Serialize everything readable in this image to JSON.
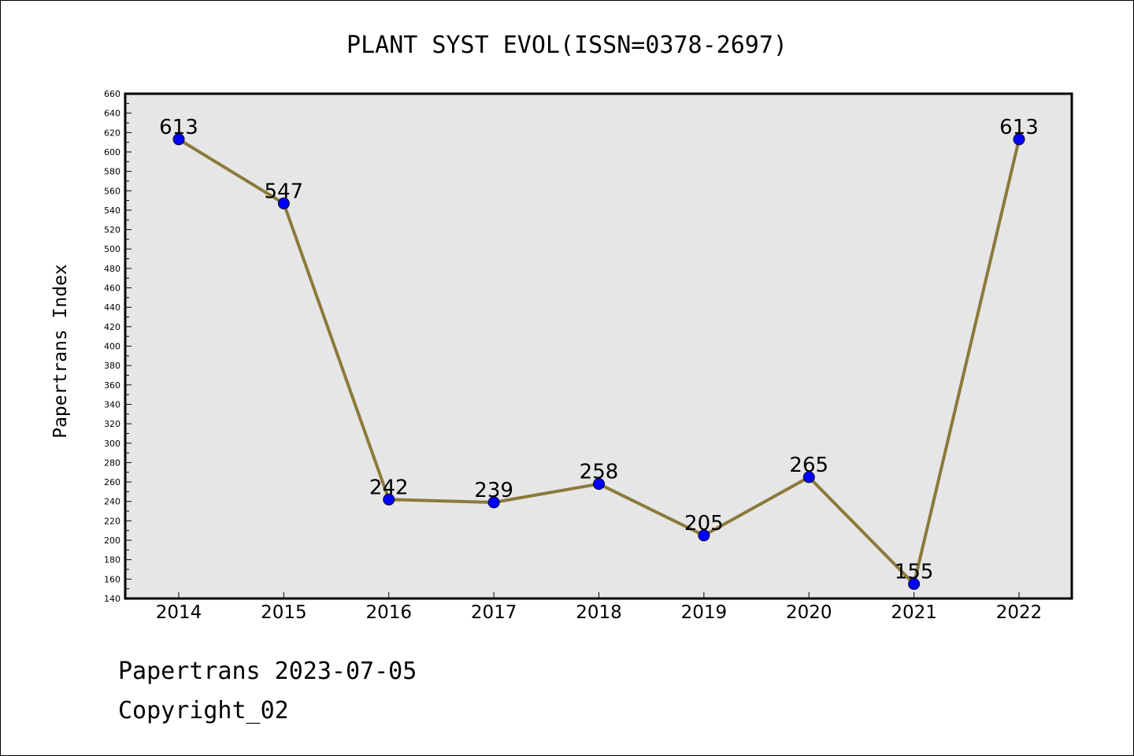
{
  "chart_data": {
    "type": "line",
    "title": "PLANT SYST EVOL(ISSN=0378-2697)",
    "xlabel": "",
    "ylabel": "Papertrans Index",
    "categories": [
      "2014",
      "2015",
      "2016",
      "2017",
      "2018",
      "2019",
      "2020",
      "2021",
      "2022"
    ],
    "series": [
      {
        "values": [
          613,
          547,
          242,
          239,
          258,
          205,
          265,
          155,
          613
        ]
      }
    ],
    "data_labels": [
      "613",
      "547",
      "242",
      "239",
      "258",
      "205",
      "265",
      "155",
      "613"
    ],
    "ylim": [
      140,
      660
    ],
    "yticks": [
      140,
      160,
      180,
      200,
      220,
      240,
      260,
      280,
      300,
      320,
      340,
      360,
      380,
      400,
      420,
      440,
      460,
      480,
      500,
      520,
      540,
      560,
      580,
      600,
      620,
      640,
      660
    ],
    "grid": false,
    "legend": "none",
    "colors": {
      "line": "#8c7a3a",
      "marker_fill": "#0000ff",
      "marker_stroke": "#000033",
      "plot_background": "#e6e6e6",
      "page_background": "#ffffff"
    }
  },
  "footer": {
    "line1": "Papertrans 2023-07-05",
    "line2": "Copyright_02"
  }
}
